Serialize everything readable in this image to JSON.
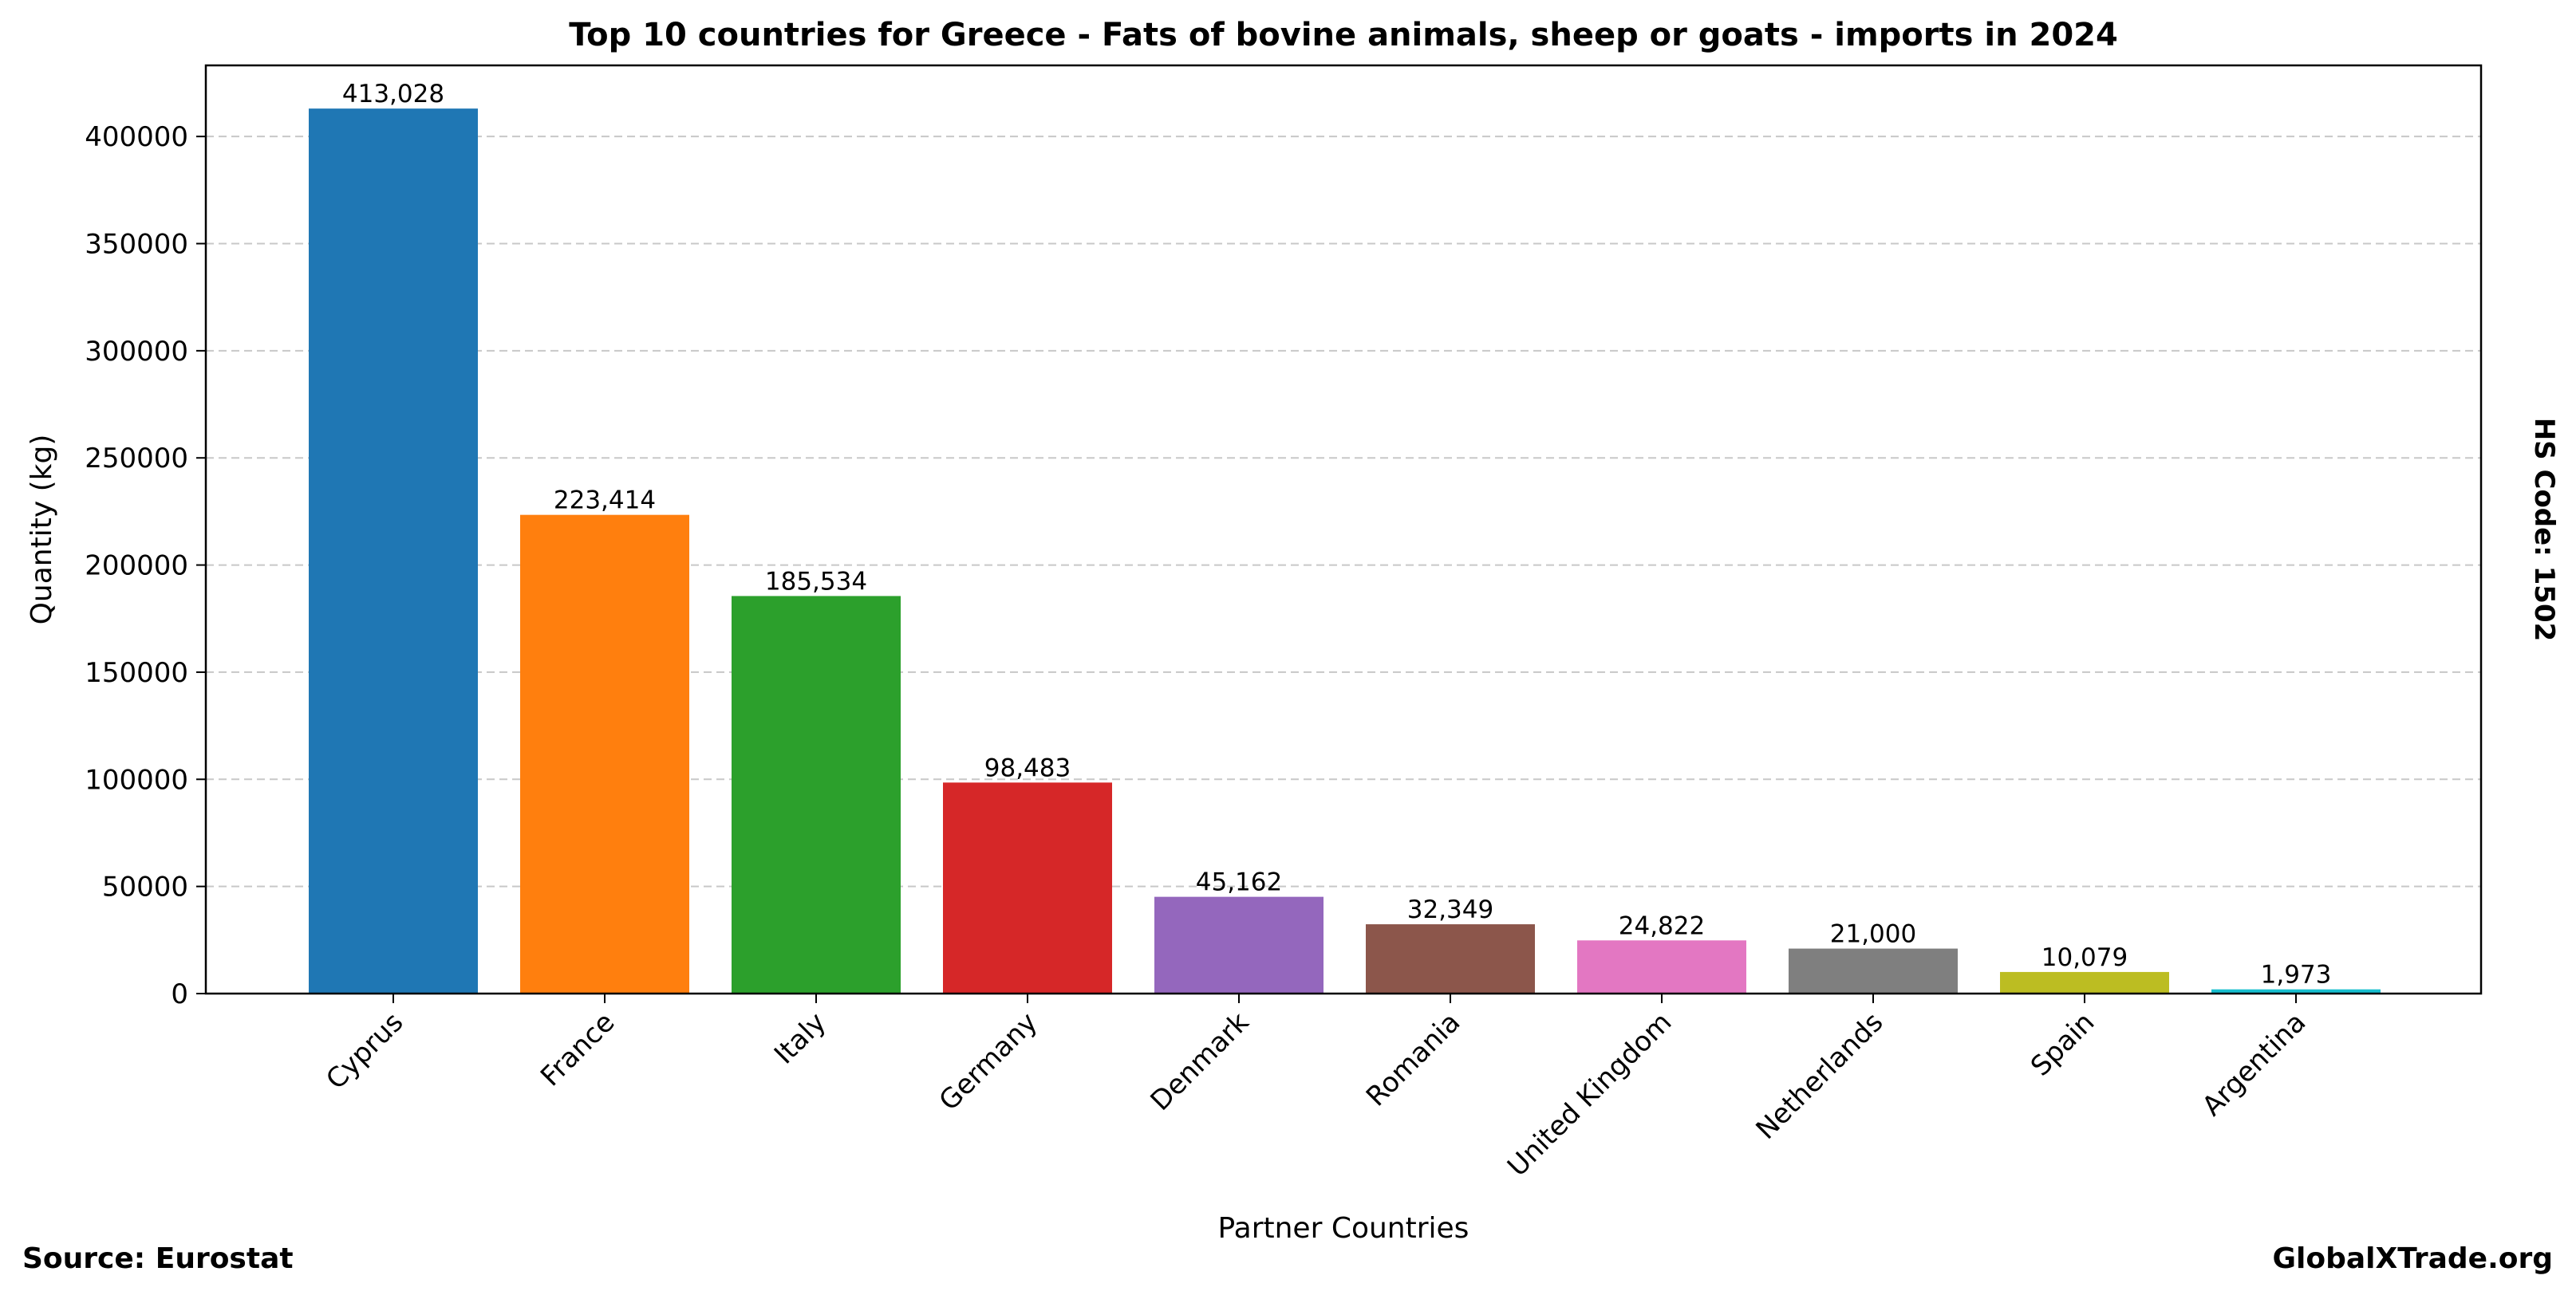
{
  "chart_data": {
    "type": "bar",
    "title": "Top 10 countries for Greece - Fats of bovine animals, sheep or goats - imports in 2024",
    "xlabel": "Partner Countries",
    "ylabel": "Quantity (kg)",
    "categories": [
      "Cyprus",
      "France",
      "Italy",
      "Germany",
      "Denmark",
      "Romania",
      "United Kingdom",
      "Netherlands",
      "Spain",
      "Argentina"
    ],
    "values": [
      413028,
      223414,
      185534,
      98483,
      45162,
      32349,
      24822,
      21000,
      10079,
      1973
    ],
    "value_labels": [
      "413,028",
      "223,414",
      "185,534",
      "98,483",
      "45,162",
      "32,349",
      "24,822",
      "21,000",
      "10,079",
      "1,973"
    ],
    "colors": [
      "#1f77b4",
      "#ff7f0e",
      "#2ca02c",
      "#d62728",
      "#9467bd",
      "#8c564b",
      "#e377c2",
      "#7f7f7f",
      "#bcbd22",
      "#17becf"
    ],
    "ylim": [
      0,
      433179
    ],
    "yticks": [
      0,
      50000,
      100000,
      150000,
      200000,
      250000,
      300000,
      350000,
      400000
    ],
    "ytick_labels": [
      "0",
      "50000",
      "100000",
      "150000",
      "200000",
      "250000",
      "300000",
      "350000",
      "400000"
    ],
    "grid": "horizontal dashed",
    "legend": "none"
  },
  "footer": {
    "source": "Source: Eurostat",
    "brand": "GlobalXTrade.org"
  },
  "side_note": "HS Code: 1502"
}
